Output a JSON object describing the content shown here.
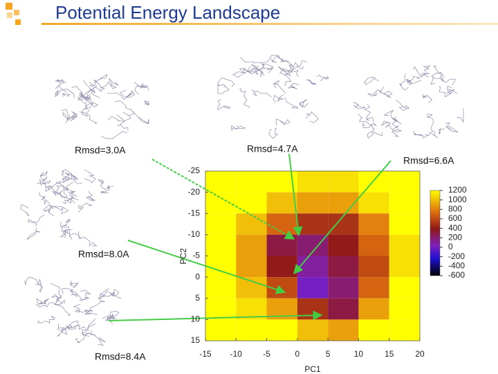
{
  "title": "Potential Energy Landscape",
  "chart_data": {
    "type": "heatmap",
    "x_label": "PC1",
    "y_label": "PC2",
    "xlim": [
      -15,
      20
    ],
    "xticks": [
      -15,
      -10,
      -5,
      0,
      5,
      10,
      15,
      20
    ],
    "ylim": [
      -25,
      15
    ],
    "yticks": [
      -25,
      -20,
      -15,
      -10,
      -5,
      0,
      5,
      10,
      15
    ],
    "x": [
      -12.5,
      -7.5,
      -2.5,
      2.5,
      7.5,
      12.5,
      17.5
    ],
    "y": [
      -22.5,
      -17.5,
      -12.5,
      -7.5,
      -2.5,
      2.5,
      7.5,
      12.5
    ],
    "z": [
      [
        1200,
        1200,
        1200,
        1100,
        1100,
        1200,
        1200
      ],
      [
        1200,
        1200,
        1000,
        900,
        900,
        1100,
        1200
      ],
      [
        1200,
        1000,
        700,
        500,
        500,
        800,
        1200
      ],
      [
        1200,
        900,
        300,
        200,
        400,
        700,
        1100
      ],
      [
        1200,
        900,
        400,
        100,
        300,
        600,
        1100
      ],
      [
        1200,
        1000,
        600,
        0,
        200,
        700,
        1200
      ],
      [
        1200,
        1100,
        900,
        500,
        300,
        900,
        1200
      ],
      [
        1200,
        1200,
        1200,
        1000,
        900,
        1200,
        1200
      ]
    ],
    "clim": [
      -600,
      1200
    ],
    "cticks": [
      1200,
      1000,
      800,
      600,
      400,
      200,
      0,
      -200,
      -400,
      -600
    ],
    "annotations": [
      "Rmsd=3.0A",
      "Rmsd=4.7A",
      "Rmsd=6.6A",
      "Rmsd=8.0A",
      "Rmsd=8.4A"
    ]
  }
}
